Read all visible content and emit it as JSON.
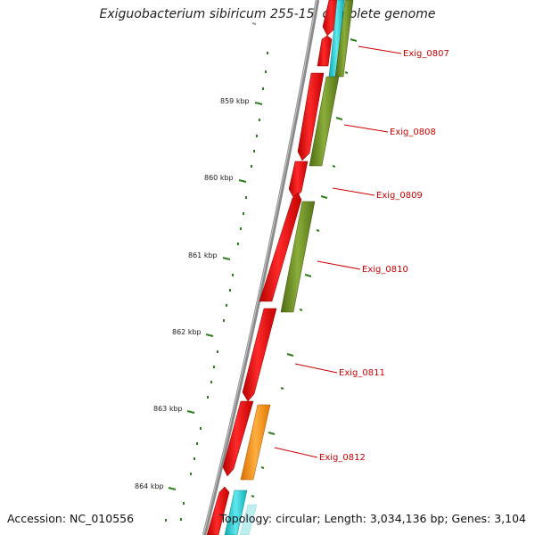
{
  "title": "Exiguobacterium sibiricum 255-15, complete genome",
  "accession": "Accession: NC_010556",
  "topology": "Topology: circular; Length: 3,034,136 bp; Genes: 3,104",
  "colors": {
    "backbone": "#8a8a8a",
    "gene_forward": "#ee0000",
    "gene_olive": "#6b8e23",
    "gene_cyan": "#19c8d2",
    "gene_orange": "#ff8c00",
    "tick": "#2e7d1f",
    "label": "#cc0000"
  },
  "ruler": [
    {
      "label": "859 kbp"
    },
    {
      "label": "860 kbp"
    },
    {
      "label": "861 kbp"
    },
    {
      "label": "862 kbp"
    },
    {
      "label": "863 kbp"
    },
    {
      "label": "864 kbp"
    }
  ],
  "gene_labels": [
    {
      "name": "Exig_0807"
    },
    {
      "name": "Exig_0808"
    },
    {
      "name": "Exig_0809"
    },
    {
      "name": "Exig_0810"
    },
    {
      "name": "Exig_0811"
    },
    {
      "name": "Exig_0812"
    }
  ]
}
